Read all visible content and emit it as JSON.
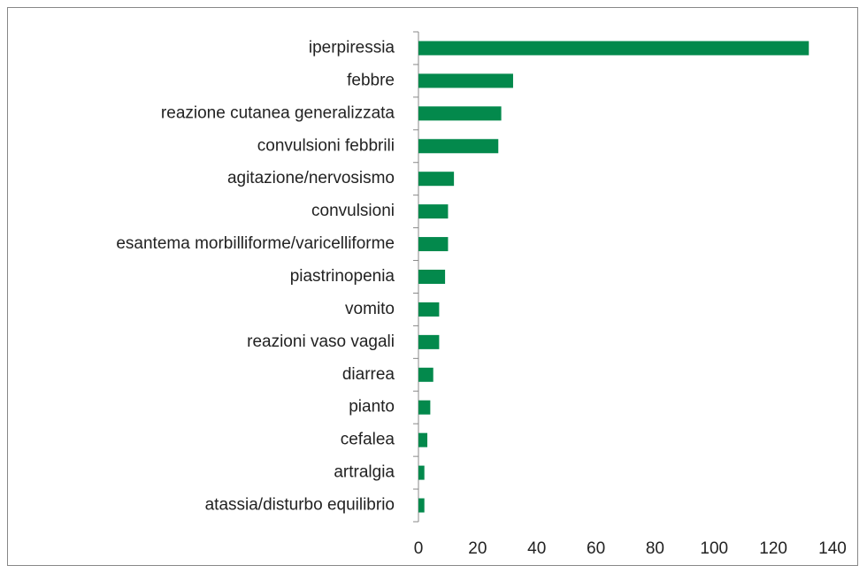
{
  "chart_data": {
    "type": "bar",
    "orientation": "horizontal",
    "categories": [
      "iperpiressia",
      "febbre",
      "reazione cutanea generalizzata",
      "convulsioni febbrili",
      "agitazione/nervosismo",
      "convulsioni",
      "esantema morbilliforme/varicelliforme",
      "piastrinopenia",
      "vomito",
      "reazioni vaso vagali",
      "diarrea",
      "pianto",
      "cefalea",
      "artralgia",
      "atassia/disturbo equilibrio"
    ],
    "values": [
      132,
      32,
      28,
      27,
      12,
      10,
      10,
      9,
      7,
      7,
      5,
      4,
      3,
      2,
      2
    ],
    "color": "#03894c",
    "xlim": [
      0,
      140
    ],
    "xticks": [
      0,
      20,
      40,
      60,
      80,
      100,
      120,
      140
    ],
    "grid": false
  }
}
